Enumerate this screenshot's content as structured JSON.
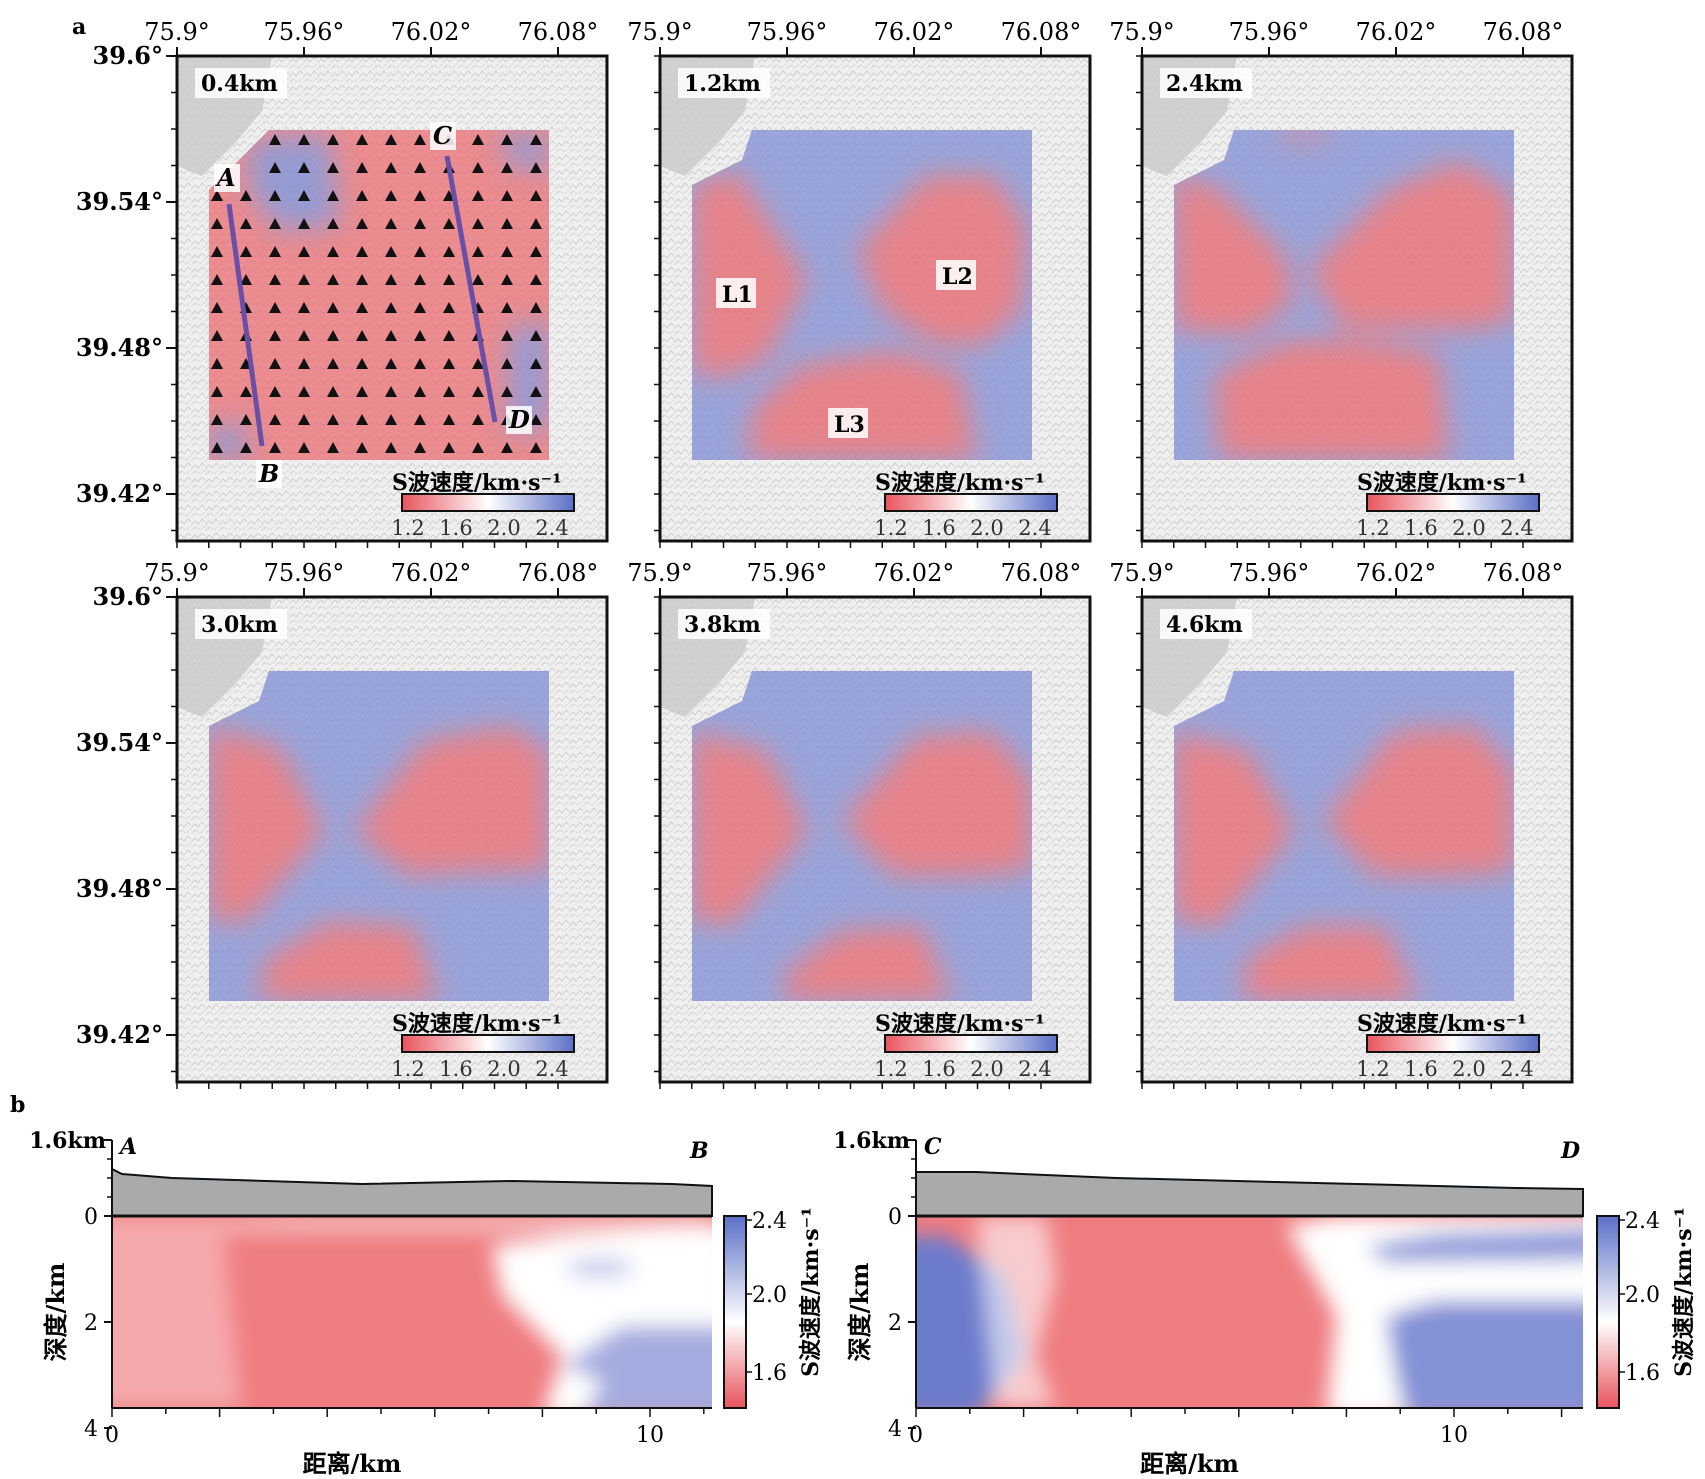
{
  "panel_labels": {
    "a": "a",
    "b": "b"
  },
  "chart_data": [
    {
      "type": "heatmap",
      "panel": "a",
      "description_of_axes": "longitude / latitude maps",
      "x_ticks": [
        "75.9°",
        "75.96°",
        "76.02°",
        "76.08°"
      ],
      "y_ticks": [
        "39.6°",
        "39.54°",
        "39.48°",
        "39.42°"
      ],
      "colorbar": {
        "label": "S波速度/km·s⁻¹",
        "ticks": [
          "1.2",
          "1.6",
          "2.0",
          "2.4"
        ],
        "low_color": "#e8545d",
        "mid_color": "#ffffff",
        "high_color": "#5b6fc7"
      },
      "maps": [
        {
          "depth": "0.4km"
        },
        {
          "depth": "1.2km",
          "anomalies": [
            "L1",
            "L2",
            "L3"
          ]
        },
        {
          "depth": "2.4km"
        },
        {
          "depth": "3.0km"
        },
        {
          "depth": "3.8km"
        },
        {
          "depth": "4.6km"
        }
      ],
      "profile_endpoints": [
        "A",
        "B",
        "C",
        "D"
      ]
    },
    {
      "type": "heatmap",
      "panel": "b",
      "profile": {
        "start": "A",
        "end": "B"
      },
      "xlabel": "距离/km",
      "ylabel": "深度/km",
      "elevation_tick": "1.6km",
      "x_ticks": [
        "0",
        "10"
      ],
      "y_ticks": [
        "0",
        "2",
        "4"
      ],
      "colorbar": {
        "label": "S波速度/km·s⁻¹",
        "ticks": [
          "2.4",
          "2.0",
          "1.6"
        ]
      }
    },
    {
      "type": "heatmap",
      "panel": "b",
      "profile": {
        "start": "C",
        "end": "D"
      },
      "xlabel": "距离/km",
      "ylabel": "深度/km",
      "elevation_tick": "1.6km",
      "x_ticks": [
        "0",
        "10"
      ],
      "y_ticks": [
        "0",
        "2",
        "4"
      ],
      "colorbar": {
        "label": "S波速度/km·s⁻¹",
        "ticks": [
          "2.4",
          "2.0",
          "1.6"
        ]
      }
    }
  ]
}
